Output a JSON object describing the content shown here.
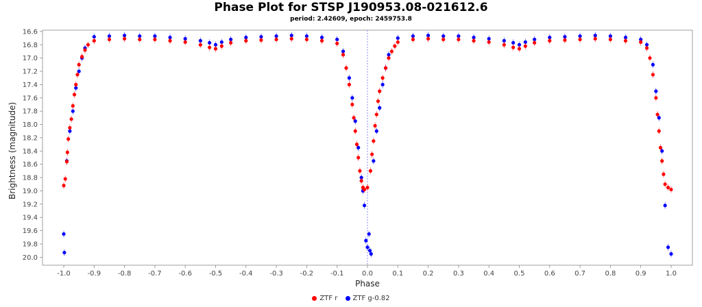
{
  "chart_data": {
    "type": "scatter",
    "title": "Phase Plot for STSP J190953.08-021612.6",
    "subtitle": "period: 2.42609, epoch: 2459753.8",
    "xlabel": "Phase",
    "ylabel": "Brightness (magnitude)",
    "xlim": [
      -1.07,
      1.07
    ],
    "ylim": [
      20.12,
      16.58
    ],
    "y_inverted": true,
    "x_ticks": [
      -1.0,
      -0.9,
      -0.8,
      -0.7,
      -0.6,
      -0.5,
      -0.4,
      -0.3,
      -0.2,
      -0.1,
      0.0,
      0.1,
      0.2,
      0.3,
      0.4,
      0.5,
      0.6,
      0.7,
      0.8,
      0.9,
      1.0
    ],
    "x_tick_labels": [
      "-1.0",
      "-0.9",
      "-0.8",
      "-0.7",
      "-0.6",
      "-0.5",
      "-0.4",
      "-0.3",
      "-0.2",
      "-0.1",
      "0.0",
      "0.1",
      "0.2",
      "0.3",
      "0.4",
      "0.5",
      "0.6",
      "0.7",
      "0.8",
      "0.9",
      "1.0"
    ],
    "y_ticks": [
      16.6,
      16.8,
      17.0,
      17.2,
      17.4,
      17.6,
      17.8,
      18.0,
      18.2,
      18.4,
      18.6,
      18.8,
      19.0,
      19.2,
      19.4,
      19.6,
      19.8,
      20.0
    ],
    "y_tick_labels": [
      "16.6",
      "16.8",
      "17.0",
      "17.2",
      "17.4",
      "17.6",
      "17.8",
      "18.0",
      "18.2",
      "18.4",
      "18.6",
      "18.8",
      "19.0",
      "19.2",
      "19.4",
      "19.6",
      "19.8",
      "20.0"
    ],
    "grid": false,
    "reference_line_x": 0.0,
    "legend_position": "bottom-center",
    "series": [
      {
        "name": "ZTF r",
        "color": "#ff0000",
        "points": [
          [
            -1.0,
            18.92
          ],
          [
            -0.995,
            18.82
          ],
          [
            -0.99,
            18.56
          ],
          [
            -0.988,
            18.42
          ],
          [
            -0.985,
            18.22
          ],
          [
            -0.98,
            18.05
          ],
          [
            -0.975,
            17.92
          ],
          [
            -0.97,
            17.72
          ],
          [
            -0.965,
            17.55
          ],
          [
            -0.96,
            17.4
          ],
          [
            -0.955,
            17.25
          ],
          [
            -0.95,
            17.1
          ],
          [
            -0.94,
            16.98
          ],
          [
            -0.93,
            16.88
          ],
          [
            -0.92,
            16.8
          ],
          [
            -0.9,
            16.74
          ],
          [
            -0.85,
            16.72
          ],
          [
            -0.8,
            16.71
          ],
          [
            -0.75,
            16.72
          ],
          [
            -0.7,
            16.72
          ],
          [
            -0.65,
            16.74
          ],
          [
            -0.6,
            16.76
          ],
          [
            -0.55,
            16.8
          ],
          [
            -0.52,
            16.84
          ],
          [
            -0.5,
            16.86
          ],
          [
            -0.48,
            16.82
          ],
          [
            -0.45,
            16.77
          ],
          [
            -0.4,
            16.74
          ],
          [
            -0.35,
            16.73
          ],
          [
            -0.3,
            16.72
          ],
          [
            -0.25,
            16.71
          ],
          [
            -0.2,
            16.72
          ],
          [
            -0.15,
            16.74
          ],
          [
            -0.1,
            16.78
          ],
          [
            -0.08,
            16.95
          ],
          [
            -0.07,
            17.15
          ],
          [
            -0.06,
            17.4
          ],
          [
            -0.05,
            17.7
          ],
          [
            -0.045,
            17.9
          ],
          [
            -0.04,
            18.1
          ],
          [
            -0.035,
            18.3
          ],
          [
            -0.03,
            18.5
          ],
          [
            -0.025,
            18.7
          ],
          [
            -0.02,
            18.85
          ],
          [
            -0.015,
            18.95
          ],
          [
            -0.01,
            18.98
          ],
          [
            0.0,
            18.95
          ],
          [
            0.01,
            18.7
          ],
          [
            0.015,
            18.45
          ],
          [
            0.02,
            18.25
          ],
          [
            0.025,
            18.02
          ],
          [
            0.03,
            17.85
          ],
          [
            0.035,
            17.65
          ],
          [
            0.04,
            17.5
          ],
          [
            0.05,
            17.3
          ],
          [
            0.06,
            17.15
          ],
          [
            0.07,
            17.0
          ],
          [
            0.08,
            16.9
          ],
          [
            0.09,
            16.82
          ],
          [
            0.1,
            16.76
          ],
          [
            0.15,
            16.72
          ],
          [
            0.2,
            16.71
          ],
          [
            0.25,
            16.72
          ],
          [
            0.3,
            16.72
          ],
          [
            0.35,
            16.74
          ],
          [
            0.4,
            16.76
          ],
          [
            0.45,
            16.8
          ],
          [
            0.48,
            16.84
          ],
          [
            0.5,
            16.86
          ],
          [
            0.52,
            16.82
          ],
          [
            0.55,
            16.77
          ],
          [
            0.6,
            16.74
          ],
          [
            0.65,
            16.73
          ],
          [
            0.7,
            16.72
          ],
          [
            0.75,
            16.71
          ],
          [
            0.8,
            16.72
          ],
          [
            0.85,
            16.74
          ],
          [
            0.9,
            16.76
          ],
          [
            0.92,
            16.85
          ],
          [
            0.93,
            17.0
          ],
          [
            0.94,
            17.25
          ],
          [
            0.95,
            17.6
          ],
          [
            0.955,
            17.85
          ],
          [
            0.96,
            18.1
          ],
          [
            0.965,
            18.35
          ],
          [
            0.97,
            18.55
          ],
          [
            0.975,
            18.75
          ],
          [
            0.98,
            18.9
          ],
          [
            0.99,
            18.95
          ],
          [
            1.0,
            18.98
          ]
        ]
      },
      {
        "name": "ZTF g-0.82",
        "color": "#0000ff",
        "points": [
          [
            -1.0,
            19.65
          ],
          [
            -0.998,
            19.93
          ],
          [
            -0.99,
            18.55
          ],
          [
            -0.98,
            18.1
          ],
          [
            -0.97,
            17.8
          ],
          [
            -0.96,
            17.45
          ],
          [
            -0.95,
            17.2
          ],
          [
            -0.94,
            17.0
          ],
          [
            -0.93,
            16.85
          ],
          [
            -0.9,
            16.68
          ],
          [
            -0.85,
            16.67
          ],
          [
            -0.8,
            16.66
          ],
          [
            -0.75,
            16.67
          ],
          [
            -0.7,
            16.67
          ],
          [
            -0.65,
            16.69
          ],
          [
            -0.6,
            16.71
          ],
          [
            -0.55,
            16.74
          ],
          [
            -0.52,
            16.77
          ],
          [
            -0.5,
            16.8
          ],
          [
            -0.48,
            16.76
          ],
          [
            -0.45,
            16.72
          ],
          [
            -0.4,
            16.69
          ],
          [
            -0.35,
            16.68
          ],
          [
            -0.3,
            16.67
          ],
          [
            -0.25,
            16.66
          ],
          [
            -0.2,
            16.67
          ],
          [
            -0.15,
            16.69
          ],
          [
            -0.1,
            16.72
          ],
          [
            -0.08,
            16.9
          ],
          [
            -0.06,
            17.3
          ],
          [
            -0.05,
            17.6
          ],
          [
            -0.04,
            17.95
          ],
          [
            -0.03,
            18.35
          ],
          [
            -0.02,
            18.8
          ],
          [
            -0.015,
            19.0
          ],
          [
            -0.01,
            19.22
          ],
          [
            -0.005,
            19.75
          ],
          [
            0.0,
            19.85
          ],
          [
            0.005,
            19.65
          ],
          [
            0.008,
            19.9
          ],
          [
            0.012,
            19.95
          ],
          [
            0.02,
            18.55
          ],
          [
            0.03,
            18.1
          ],
          [
            0.04,
            17.75
          ],
          [
            0.05,
            17.4
          ],
          [
            0.06,
            17.15
          ],
          [
            0.07,
            16.95
          ],
          [
            0.1,
            16.7
          ],
          [
            0.15,
            16.67
          ],
          [
            0.2,
            16.66
          ],
          [
            0.25,
            16.67
          ],
          [
            0.3,
            16.67
          ],
          [
            0.35,
            16.69
          ],
          [
            0.4,
            16.71
          ],
          [
            0.45,
            16.74
          ],
          [
            0.48,
            16.77
          ],
          [
            0.5,
            16.8
          ],
          [
            0.52,
            16.76
          ],
          [
            0.55,
            16.72
          ],
          [
            0.6,
            16.69
          ],
          [
            0.65,
            16.68
          ],
          [
            0.7,
            16.67
          ],
          [
            0.75,
            16.66
          ],
          [
            0.8,
            16.67
          ],
          [
            0.85,
            16.69
          ],
          [
            0.9,
            16.72
          ],
          [
            0.92,
            16.8
          ],
          [
            0.94,
            17.1
          ],
          [
            0.95,
            17.5
          ],
          [
            0.96,
            17.9
          ],
          [
            0.97,
            18.4
          ],
          [
            0.98,
            19.22
          ],
          [
            0.99,
            19.85
          ],
          [
            1.0,
            19.95
          ]
        ]
      }
    ]
  }
}
